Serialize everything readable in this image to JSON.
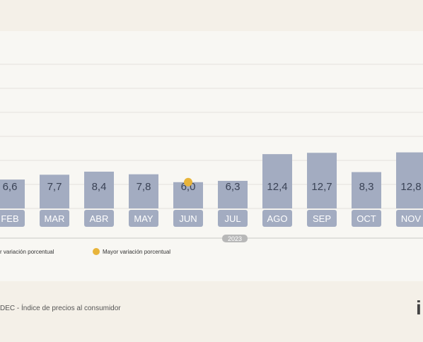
{
  "chart_data": {
    "type": "bar",
    "categories": [
      "FEB",
      "MAR",
      "ABR",
      "MAY",
      "JUN",
      "JUL",
      "AGO",
      "SEP",
      "OCT",
      "NOV"
    ],
    "value_labels": [
      "6,6",
      "7,7",
      "8,4",
      "7,8",
      "6,0",
      "6,3",
      "12,4",
      "12,7",
      "8,3",
      "12,8"
    ],
    "values": [
      6.6,
      7.7,
      8.4,
      7.8,
      6.0,
      6.3,
      12.4,
      12.7,
      8.3,
      12.8
    ],
    "year_label": "2023",
    "highlight_low": {
      "category": "JUN",
      "value": 6.0
    },
    "legend": [
      {
        "label": "r variación porcentual",
        "marker": "low"
      },
      {
        "label": "Mayor variación porcentual",
        "marker": "high"
      }
    ],
    "grid": true,
    "ylim": [
      0,
      20
    ],
    "colors": {
      "bar": "#a3acc1",
      "label_box": "#a3acc1",
      "label_text": "#ffffff",
      "value_text": "#3a4255",
      "marker_low": "#e8b43a",
      "grid": "#e3e2de"
    }
  },
  "footer": {
    "source": "DEC - Índice de precios al consumidor",
    "brand": "i"
  }
}
